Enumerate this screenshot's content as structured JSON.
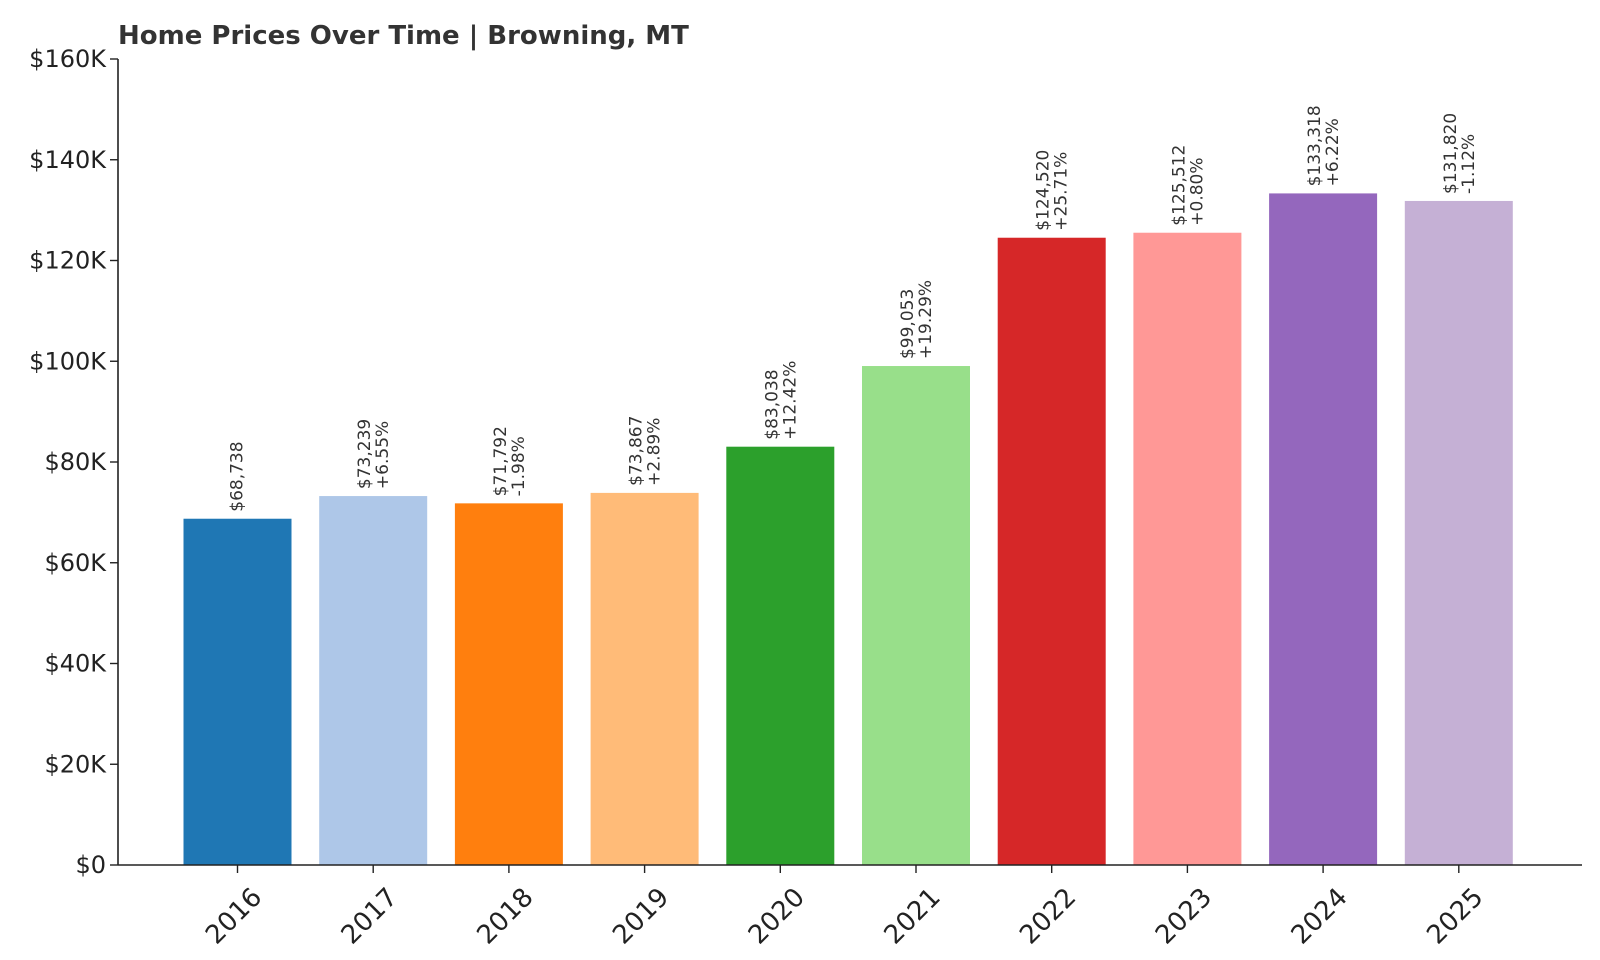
{
  "chart_data": {
    "type": "bar",
    "title": "Home Prices Over Time | Browning, MT",
    "xlabel": "",
    "ylabel": "",
    "ylim": [
      0,
      160000
    ],
    "y_ticks": [
      {
        "value": 0,
        "label": "$0"
      },
      {
        "value": 20000,
        "label": "$20K"
      },
      {
        "value": 40000,
        "label": "$40K"
      },
      {
        "value": 60000,
        "label": "$60K"
      },
      {
        "value": 80000,
        "label": "$80K"
      },
      {
        "value": 100000,
        "label": "$100K"
      },
      {
        "value": 120000,
        "label": "$120K"
      },
      {
        "value": 140000,
        "label": "$140K"
      },
      {
        "value": 160000,
        "label": "$160K"
      }
    ],
    "grid": false,
    "legend": "none",
    "categories": [
      "2016",
      "2017",
      "2018",
      "2019",
      "2020",
      "2021",
      "2022",
      "2023",
      "2024",
      "2025"
    ],
    "values": [
      68738,
      73239,
      71792,
      73867,
      83038,
      99053,
      124520,
      125512,
      133318,
      131820
    ],
    "value_labels": [
      "$68,738",
      "$73,239",
      "$71,792",
      "$73,867",
      "$83,038",
      "$99,053",
      "$124,520",
      "$125,512",
      "$133,318",
      "$131,820"
    ],
    "change_labels": [
      "",
      "+6.55%",
      "-1.98%",
      "+2.89%",
      "+12.42%",
      "+19.29%",
      "+25.71%",
      "+0.80%",
      "+6.22%",
      "-1.12%"
    ],
    "colors": [
      "#1f77b4",
      "#aec7e8",
      "#ff7f0e",
      "#ffbb78",
      "#2ca02c",
      "#98df8a",
      "#d62728",
      "#ff9896",
      "#9467bd",
      "#c5b0d5"
    ]
  }
}
